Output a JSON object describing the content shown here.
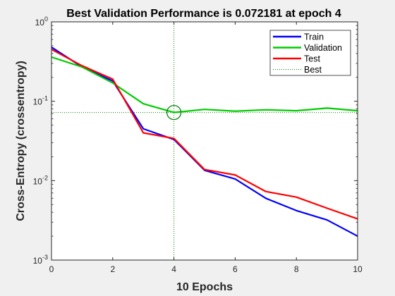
{
  "chart_data": {
    "type": "line",
    "title": "Best Validation Performance is 0.072181 at epoch 4",
    "xlabel": "10 Epochs",
    "ylabel": "Cross-Entropy  (crossentropy)",
    "x": [
      0,
      1,
      2,
      3,
      4,
      5,
      6,
      7,
      8,
      9,
      10
    ],
    "xlim": [
      0,
      10
    ],
    "ylim": [
      0.001,
      1
    ],
    "yscale": "log",
    "x_ticks": [
      0,
      2,
      4,
      6,
      8,
      10
    ],
    "x_tick_labels": [
      "0",
      "2",
      "4",
      "6",
      "8",
      "10"
    ],
    "y_ticks": [
      0.001,
      0.01,
      0.1,
      1
    ],
    "y_tick_labels": [
      {
        "base": "10",
        "exp": "-3"
      },
      {
        "base": "10",
        "exp": "-2"
      },
      {
        "base": "10",
        "exp": "-1"
      },
      {
        "base": "10",
        "exp": "0"
      }
    ],
    "grid": false,
    "legend_placement": "top-right",
    "series": [
      {
        "name": "Train",
        "color": "#0000ff",
        "style": "solid",
        "values": [
          0.48,
          0.27,
          0.18,
          0.045,
          0.033,
          0.0135,
          0.0105,
          0.006,
          0.0042,
          0.0032,
          0.002
        ]
      },
      {
        "name": "Validation",
        "color": "#00cc00",
        "style": "solid",
        "values": [
          0.36,
          0.27,
          0.17,
          0.093,
          0.072181,
          0.079,
          0.075,
          0.078,
          0.076,
          0.082,
          0.076
        ]
      },
      {
        "name": "Test",
        "color": "#ff0000",
        "style": "solid",
        "values": [
          0.45,
          0.28,
          0.19,
          0.04,
          0.034,
          0.0138,
          0.0118,
          0.0073,
          0.0062,
          0.0045,
          0.0033
        ]
      },
      {
        "name": "Best",
        "color": "#008000",
        "style": "dotted"
      }
    ],
    "best": {
      "epoch": 4,
      "value": 0.072181
    }
  }
}
